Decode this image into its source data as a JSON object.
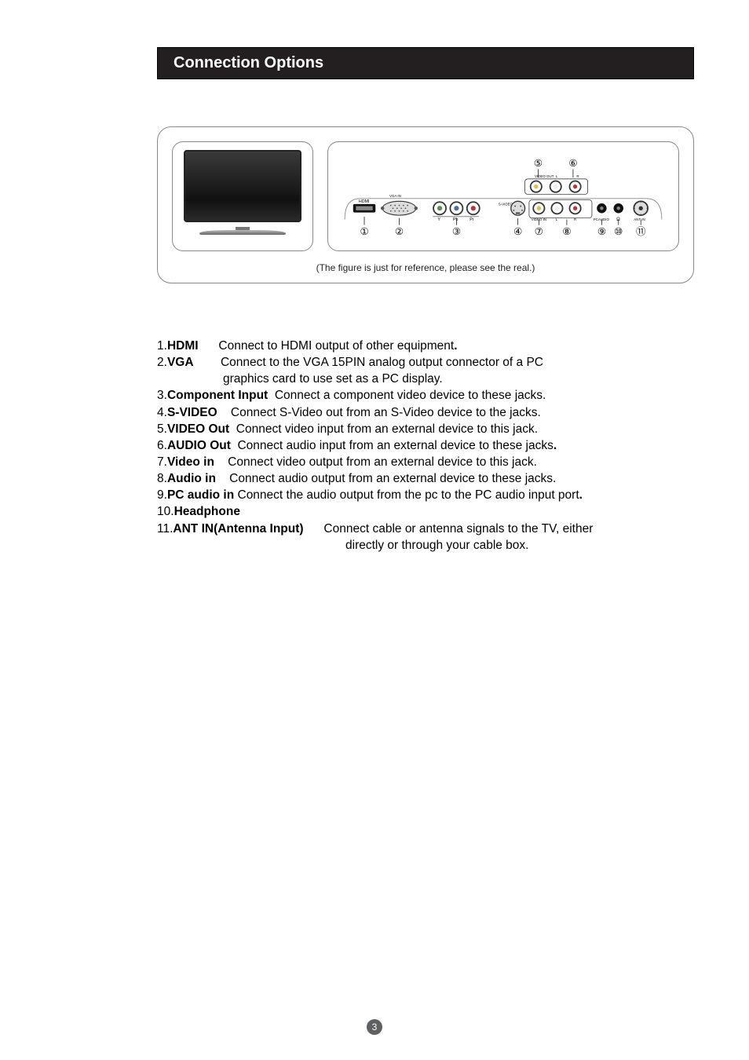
{
  "header": {
    "title": "Connection Options"
  },
  "figure": {
    "note": "(The figure is just for reference, please see the real.)",
    "top_numbers": [
      "⑤",
      "⑥"
    ],
    "bottom_numbers": [
      "①",
      "②",
      "③",
      "④",
      "⑦",
      "⑧",
      "⑨",
      "⑩",
      "⑪"
    ],
    "port_top_group_label": "VIDEO OUT",
    "port_top_labels": [
      "L",
      "R"
    ],
    "hdmi_label": "HDMI",
    "vga_label": "VGA IN",
    "component_labels": [
      "Y",
      "Pb",
      "Pr"
    ],
    "svideo_label": "S-VIDEO",
    "video_in_labels": [
      "VIDEO IN",
      "L",
      "R"
    ],
    "pcaudio_label": "PCAUDIO",
    "headphone_label": "Ω",
    "ant_label": "ANT IN",
    "colors": {
      "frame": "#888888",
      "bg": "#ffffff",
      "port_ring": "#444444",
      "port_fill": "#f2f2f2",
      "rca_yellow": "#d9c24a",
      "rca_red": "#b33",
      "rca_white": "#eee",
      "rca_green": "#5a8f4a",
      "rca_blue": "#4a6fa0",
      "black": "#111111",
      "label": "#222222"
    }
  },
  "list": [
    {
      "num": "1",
      "label": "HDMI",
      "gap": "      ",
      "desc": "Connect to HDMI output of other equipment",
      "tail": "."
    },
    {
      "num": "2",
      "label": "VGA",
      "gap": "        ",
      "desc": "Connect to the VGA 15PIN analog output connector of a PC",
      "cont": "graphics card to use set as a PC display."
    },
    {
      "num": "3",
      "label": "Component Input",
      "gap": "  ",
      "desc": "Connect a component video device to these jacks",
      "tail": "."
    },
    {
      "num": "4",
      "label": "S-VIDEO",
      "gap": "    ",
      "desc": "Connect S-Video out from an S-Video device to the jacks",
      "tail": "."
    },
    {
      "num": "5",
      "label": "VIDEO Out",
      "gap": "  ",
      "desc": "Connect video input from an external device to this jack."
    },
    {
      "num": "6",
      "label": "AUDIO Out",
      "gap": "  ",
      "desc": "Connect audio input from an external device to these jacks",
      "tail": "."
    },
    {
      "num": "7",
      "label": "Video in",
      "gap": "    ",
      "desc": "Connect video output from an external device to this jack."
    },
    {
      "num": "8",
      "label": "Audio in",
      "gap": "    ",
      "desc": "Connect audio output from an external device to these jacks."
    },
    {
      "num": "9",
      "label": "PC audio in",
      "gap": " ",
      "desc": "Connect the audio output from the pc to the PC audio input port",
      "tail": "."
    },
    {
      "num": "10",
      "label": "Headphone",
      "gap": "",
      "desc": ""
    },
    {
      "num": "11",
      "label": "ANT IN(Antenna Input)",
      "gap": "      ",
      "desc": "Connect cable or antenna signals to the TV, either",
      "cont2": "directly or through your cable box."
    }
  ],
  "page_number": "3"
}
